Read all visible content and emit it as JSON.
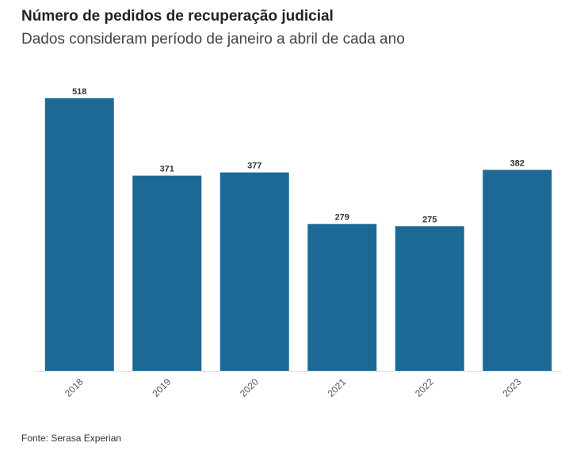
{
  "colors": {
    "bar": "#1d6996",
    "baseline": "#dddddd",
    "title": "#222222",
    "subtitle": "#444444"
  },
  "chart_data": {
    "type": "bar",
    "title": "Número de pedidos de recuperação judicial",
    "subtitle": "Dados consideram período de janeiro a abril de cada ano",
    "categories": [
      "2018",
      "2019",
      "2020",
      "2021",
      "2022",
      "2023"
    ],
    "values": [
      518,
      371,
      377,
      279,
      275,
      382
    ],
    "xlabel": "",
    "ylabel": "",
    "ylim": [
      0,
      518
    ],
    "grid": false,
    "data_labels": true,
    "legend": "none"
  },
  "footer": {
    "source": "Fonte: Serasa Experian"
  }
}
